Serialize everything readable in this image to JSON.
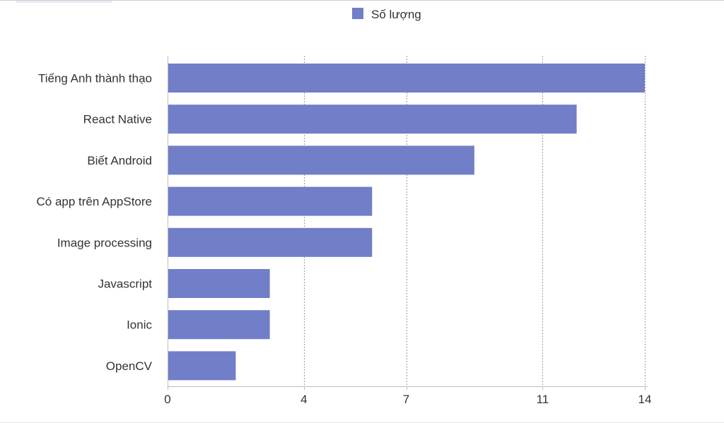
{
  "chart_data": {
    "type": "bar",
    "orientation": "horizontal",
    "categories": [
      "Tiếng Anh thành thạo",
      "React Native",
      "Biết Android",
      "Có app trên AppStore",
      "Image processing",
      "Javascript",
      "Ionic",
      "OpenCV"
    ],
    "series": [
      {
        "name": "Số lượng",
        "values": [
          14,
          12,
          9,
          6,
          6,
          3,
          3,
          2
        ],
        "color": "#717ec8"
      }
    ],
    "xticks": [
      0,
      4,
      7,
      11,
      14
    ],
    "xlim": [
      0,
      14
    ],
    "grid": true,
    "legend_position": "top-center",
    "axis_color": "#bdbdbd",
    "grid_color": "#9e9e9e"
  }
}
